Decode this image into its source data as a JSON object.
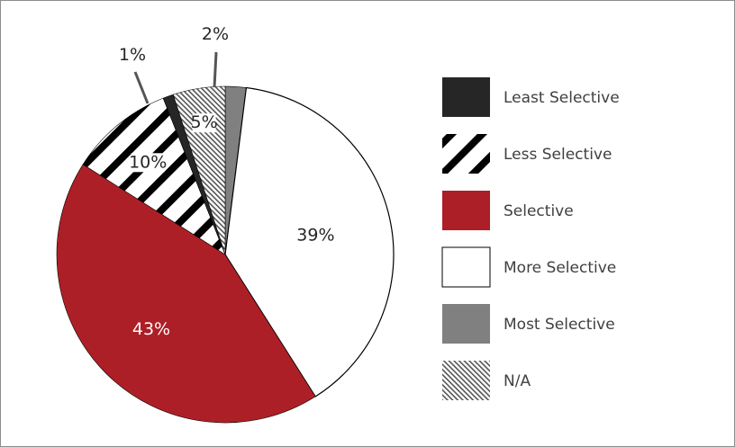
{
  "chart_data": {
    "type": "pie",
    "title": "",
    "categories": [
      "Least Selective",
      "Less Selective",
      "Selective",
      "More Selective",
      "Most Selective",
      "N/A"
    ],
    "values": [
      1,
      10,
      43,
      39,
      2,
      5
    ],
    "value_labels": [
      "1%",
      "10%",
      "43%",
      "39%",
      "2%",
      "5%"
    ],
    "fills": {
      "Least Selective": "#262626",
      "Less Selective": "stripes-black-white",
      "Selective": "#ad1f26",
      "More Selective": "#ffffff",
      "Most Selective": "#808080",
      "N/A": "fine-hatch-gray"
    },
    "slice_order_clockwise_from_top": [
      "Most Selective",
      "More Selective",
      "Selective",
      "Less Selective",
      "Least Selective",
      "N/A"
    ],
    "legend_position": "right",
    "label_colors": {
      "Selective": "#ffffff"
    }
  }
}
